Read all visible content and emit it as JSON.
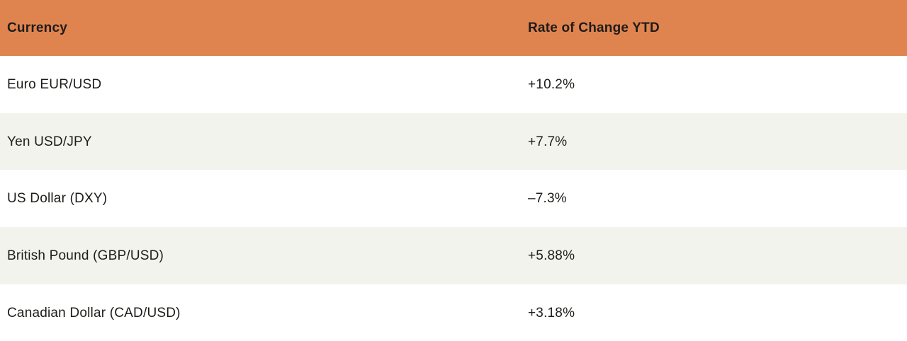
{
  "colors": {
    "header_bg": "#E0844F",
    "row_alt_bg": "#F3F3ED",
    "row_bg": "#FFFFFF",
    "text": "#1E1C19"
  },
  "table": {
    "header": {
      "currency": "Currency",
      "rate": "Rate of Change YTD"
    },
    "rows": [
      {
        "currency": "Euro EUR/USD",
        "rate": "+10.2%"
      },
      {
        "currency": "Yen USD/JPY",
        "rate": "+7.7%"
      },
      {
        "currency": "US Dollar (DXY)",
        "rate": "–7.3%"
      },
      {
        "currency": "British Pound (GBP/USD)",
        "rate": "+5.88%"
      },
      {
        "currency": "Canadian Dollar (CAD/USD)",
        "rate": "+3.18%"
      }
    ]
  },
  "chart_data": {
    "type": "table",
    "title": "",
    "columns": [
      "Currency",
      "Rate of Change YTD"
    ],
    "rows": [
      [
        "Euro EUR/USD",
        "+10.2%"
      ],
      [
        "Yen USD/JPY",
        "+7.7%"
      ],
      [
        "US Dollar (DXY)",
        "–7.3%"
      ],
      [
        "British Pound (GBP/USD)",
        "+5.88%"
      ],
      [
        "Canadian Dollar (CAD/USD)",
        "+3.18%"
      ]
    ],
    "values_numeric_pct": [
      10.2,
      7.7,
      -7.3,
      5.88,
      3.18
    ],
    "layout_hints": {
      "header_background": "#E0844F",
      "alternating_row_backgrounds": [
        "#F3F3ED",
        "#FFFFFF"
      ],
      "grid": false
    }
  }
}
